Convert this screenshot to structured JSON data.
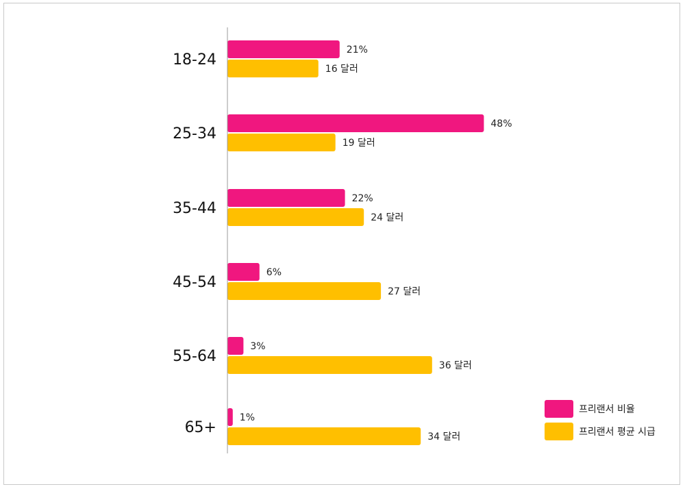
{
  "chart_data": {
    "type": "bar",
    "orientation": "horizontal",
    "categories": [
      "18-24",
      "25-34",
      "35-44",
      "45-54",
      "55-64",
      "65+"
    ],
    "series": [
      {
        "name": "프리랜서 비율",
        "values": [
          21,
          48,
          22,
          6,
          3,
          1
        ],
        "labels": [
          "21%",
          "48%",
          "22%",
          "6%",
          "3%",
          "1%"
        ],
        "color": "#f0177f"
      },
      {
        "name": "프리랜서 평균 시급",
        "values": [
          16,
          19,
          24,
          27,
          36,
          34
        ],
        "labels": [
          "16 달러",
          "19 달러",
          "24 달러",
          "27 달러",
          "36 달러",
          "34 달러"
        ],
        "color": "#ffbf00"
      }
    ],
    "legend": "bottom-right",
    "grid": false
  }
}
